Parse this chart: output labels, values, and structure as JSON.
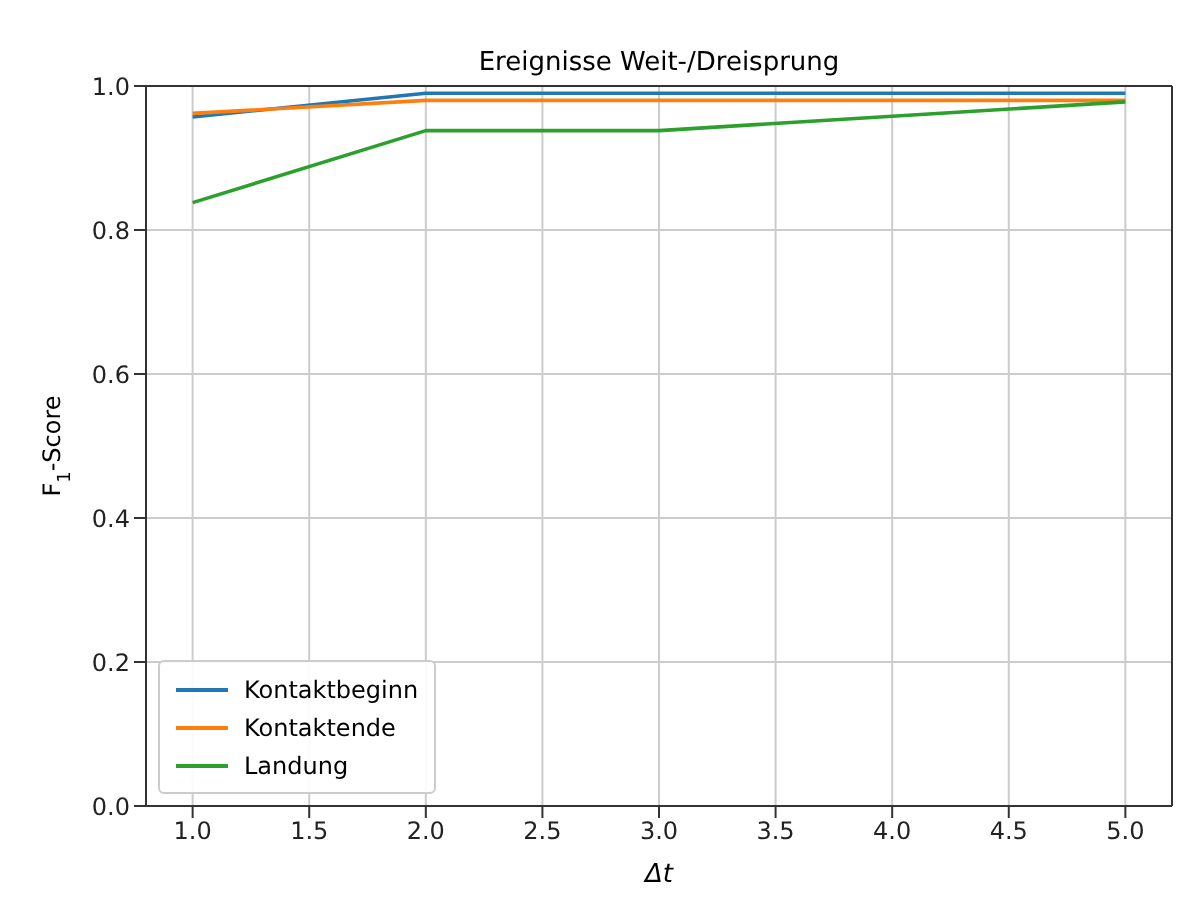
{
  "chart_data": {
    "type": "line",
    "title": "Ereignisse Weit-/Dreisprung",
    "xlabel": "Δt",
    "ylabel": "F$_{1}$-Score",
    "x": [
      1,
      2,
      3,
      4,
      5
    ],
    "series": [
      {
        "name": "Kontaktbeginn",
        "color": "#1f77b4",
        "values": [
          0.957,
          0.99,
          0.99,
          0.99,
          0.99
        ]
      },
      {
        "name": "Kontaktende",
        "color": "#ff7f0e",
        "values": [
          0.962,
          0.98,
          0.98,
          0.98,
          0.98
        ]
      },
      {
        "name": "Landung",
        "color": "#2ca02c",
        "values": [
          0.838,
          0.938,
          0.938,
          0.958,
          0.978
        ]
      }
    ],
    "xlim": [
      0.8,
      5.2
    ],
    "xticks": [
      {
        "value": 1,
        "label": "1.0"
      },
      1.5,
      {
        "value": 2,
        "label": "2.0"
      },
      2.5,
      {
        "value": 3,
        "label": "3.0"
      },
      3.5,
      {
        "value": 4,
        "label": "4.0"
      },
      4.5,
      {
        "value": 5,
        "label": "5.0"
      }
    ],
    "ylim": [
      0,
      1
    ],
    "yticks": [
      {
        "value": 0,
        "label": "0.0"
      },
      0.2,
      0.4,
      0.6,
      0.8,
      {
        "value": 1,
        "label": "1.0"
      }
    ],
    "grid": true,
    "legend": "bottom left",
    "marker": "none",
    "line_style": "solid"
  }
}
